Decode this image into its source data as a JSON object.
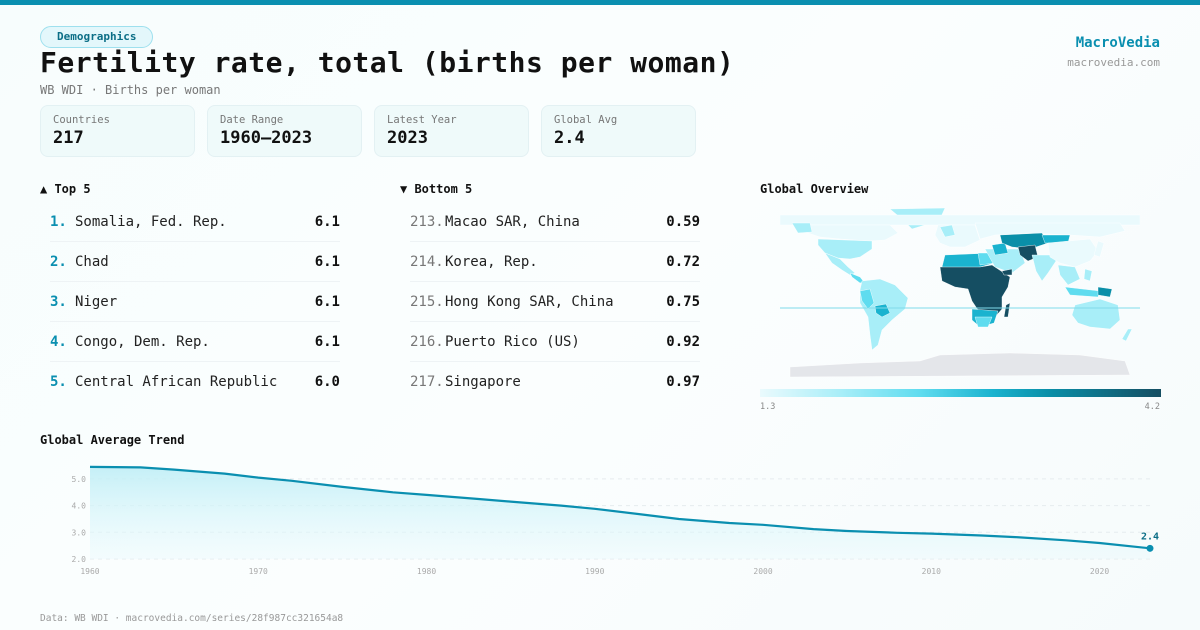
{
  "header": {
    "category_tag": "Demographics",
    "title": "Fertility rate, total (births per woman)",
    "subtitle": "WB WDI · Births per woman",
    "brand": "MacroVedia",
    "brand_url": "macrovedia.com"
  },
  "stats": [
    {
      "label": "Countries",
      "value": "217"
    },
    {
      "label": "Date Range",
      "value": "1960–2023"
    },
    {
      "label": "Latest Year",
      "value": "2023"
    },
    {
      "label": "Global Avg",
      "value": "2.4"
    }
  ],
  "top5": {
    "heading": "▲ Top 5",
    "items": [
      {
        "rank": "1.",
        "name": "Somalia, Fed. Rep.",
        "value": "6.1"
      },
      {
        "rank": "2.",
        "name": "Chad",
        "value": "6.1"
      },
      {
        "rank": "3.",
        "name": "Niger",
        "value": "6.1"
      },
      {
        "rank": "4.",
        "name": "Congo, Dem. Rep.",
        "value": "6.1"
      },
      {
        "rank": "5.",
        "name": "Central African Republic",
        "value": "6.0"
      }
    ]
  },
  "bottom5": {
    "heading": "▼ Bottom 5",
    "items": [
      {
        "rank": "213.",
        "name": "Macao SAR, China",
        "value": "0.59"
      },
      {
        "rank": "214.",
        "name": "Korea, Rep.",
        "value": "0.72"
      },
      {
        "rank": "215.",
        "name": "Hong Kong SAR, China",
        "value": "0.75"
      },
      {
        "rank": "216.",
        "name": "Puerto Rico (US)",
        "value": "0.92"
      },
      {
        "rank": "217.",
        "name": "Singapore",
        "value": "0.97"
      }
    ]
  },
  "map": {
    "title": "Global Overview",
    "scale_min": "1.3",
    "scale_max": "4.2",
    "colors": {
      "lowest": "#eafafd",
      "low": "#a8eef8",
      "mid_low": "#5fdcef",
      "mid": "#1ab3cf",
      "mid_high": "#0a8fa8",
      "high": "#154e62",
      "no_data": "#e4e6ea",
      "equator": "#7fdbea"
    }
  },
  "trend": {
    "title": "Global Average Trend",
    "end_label": "2.4"
  },
  "colors": {
    "accent": "#0a8fb0",
    "line": "#0a8fb0"
  },
  "footer": "Data: WB WDI · macrovedia.com/series/28f987cc321654a8",
  "chart_data": [
    {
      "type": "line",
      "title": "Global Average Trend",
      "xlabel": "",
      "ylabel": "Births per woman",
      "x": [
        1960,
        1963,
        1965,
        1968,
        1970,
        1972,
        1975,
        1978,
        1980,
        1983,
        1985,
        1988,
        1990,
        1993,
        1995,
        1998,
        2000,
        2003,
        2005,
        2008,
        2010,
        2013,
        2015,
        2018,
        2020,
        2023
      ],
      "series": [
        {
          "name": "Global Avg",
          "values": [
            5.45,
            5.43,
            5.35,
            5.2,
            5.05,
            4.93,
            4.7,
            4.5,
            4.4,
            4.25,
            4.15,
            4.0,
            3.88,
            3.65,
            3.5,
            3.35,
            3.28,
            3.12,
            3.05,
            2.98,
            2.95,
            2.88,
            2.82,
            2.7,
            2.6,
            2.4
          ]
        }
      ],
      "xticks": [
        "1960",
        "1970",
        "1980",
        "1990",
        "2000",
        "2010",
        "2020"
      ],
      "yticks": [
        "2.0",
        "3.0",
        "4.0",
        "5.0"
      ],
      "ylim": [
        2.0,
        5.5
      ],
      "xlim": [
        1960,
        2023
      ],
      "grid": true,
      "annotations": [
        {
          "x": 2023,
          "y": 2.4,
          "text": "2.4"
        }
      ]
    },
    {
      "type": "heatmap",
      "title": "Global Overview",
      "subtype": "choropleth",
      "colorscale_range": [
        1.3,
        4.2
      ],
      "colorscale_labels": [
        "1.3",
        "4.2"
      ]
    }
  ]
}
